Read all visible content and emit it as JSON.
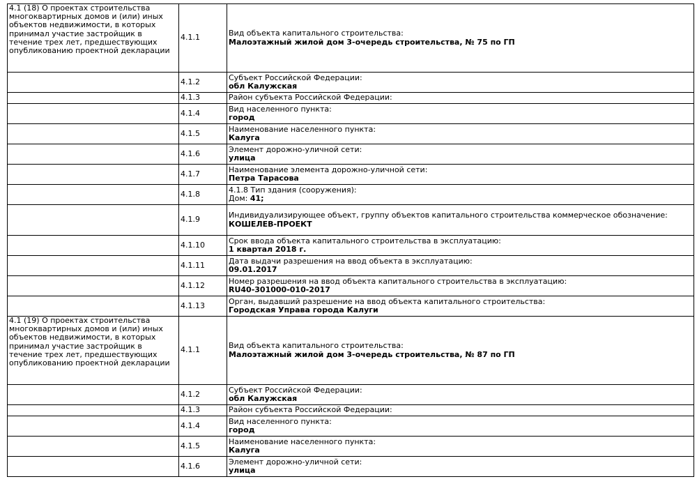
{
  "groups": [
    {
      "title": "4.1 (18) О проектах строительства многоквартирных домов и (или) иных объектов недвижимости, в которых принимал участие застройщик в течение трех лет, предшествующих опубликованию проектной декларации",
      "rows": [
        {
          "num": "4.1.1",
          "label": "Вид объекта капитального строительства:",
          "value": "Малоэтажный жилой дом 3-очередь строительства, № 75 по ГП"
        },
        {
          "num": "4.1.2",
          "label": "Субъект Российской Федерации:",
          "value": "обл Калужская"
        },
        {
          "num": "4.1.3",
          "label": "Район субъекта Российской Федерации:",
          "value": ""
        },
        {
          "num": "4.1.4",
          "label": "Вид населенного пункта:",
          "value": "город"
        },
        {
          "num": "4.1.5",
          "label": "Наименование населенного пункта:",
          "value": "Калуга"
        },
        {
          "num": "4.1.6",
          "label": "Элемент дорожно-уличной сети:",
          "value": "улица"
        },
        {
          "num": "4.1.7",
          "label": "Наименование элемента дорожно-уличной сети:",
          "value": "Петра Тарасова"
        },
        {
          "num": "4.1.8",
          "label": "4.1.8 Тип здания (сооружения):",
          "prefix": "Дом: ",
          "value": "41;"
        },
        {
          "num": "4.1.9",
          "label": "Индивидуализирующее объект, группу объектов капитального строительства коммерческое обозначение:",
          "value": "КОШЕЛЕВ-ПРОЕКТ"
        },
        {
          "num": "4.1.10",
          "label": "Срок ввода объекта капитального строительства в эксплуатацию:",
          "value": "1 квартал 2018 г."
        },
        {
          "num": "4.1.11",
          "label": "Дата выдачи разрешения на ввод объекта в эксплуатацию:",
          "value": "09.01.2017"
        },
        {
          "num": "4.1.12",
          "label": "Номер разрешения на ввод объекта капитального строительства в эксплуатацию:",
          "value": "RU40-301000-010-2017"
        },
        {
          "num": "4.1.13",
          "label": "Орган, выдавший разрешение на ввод объекта капитального строительства:",
          "value": "Городская Управа города Калуги"
        }
      ]
    },
    {
      "title": "4.1 (19) О проектах строительства многоквартирных домов и (или) иных объектов недвижимости, в которых принимал участие застройщик в течение трех лет, предшествующих опубликованию проектной декларации",
      "rows": [
        {
          "num": "4.1.1",
          "label": "Вид объекта капитального строительства:",
          "value": "Малоэтажный жилой дом 3-очередь строительства, № 87 по ГП"
        },
        {
          "num": "4.1.2",
          "label": "Субъект Российской Федерации:",
          "value": "обл Калужская"
        },
        {
          "num": "4.1.3",
          "label": "Район субъекта Российской Федерации:",
          "value": ""
        },
        {
          "num": "4.1.4",
          "label": "Вид населенного пункта:",
          "value": "город"
        },
        {
          "num": "4.1.5",
          "label": "Наименование населенного пункта:",
          "value": "Калуга"
        },
        {
          "num": "4.1.6",
          "label": "Элемент дорожно-уличной сети:",
          "value": "улица"
        }
      ]
    }
  ]
}
